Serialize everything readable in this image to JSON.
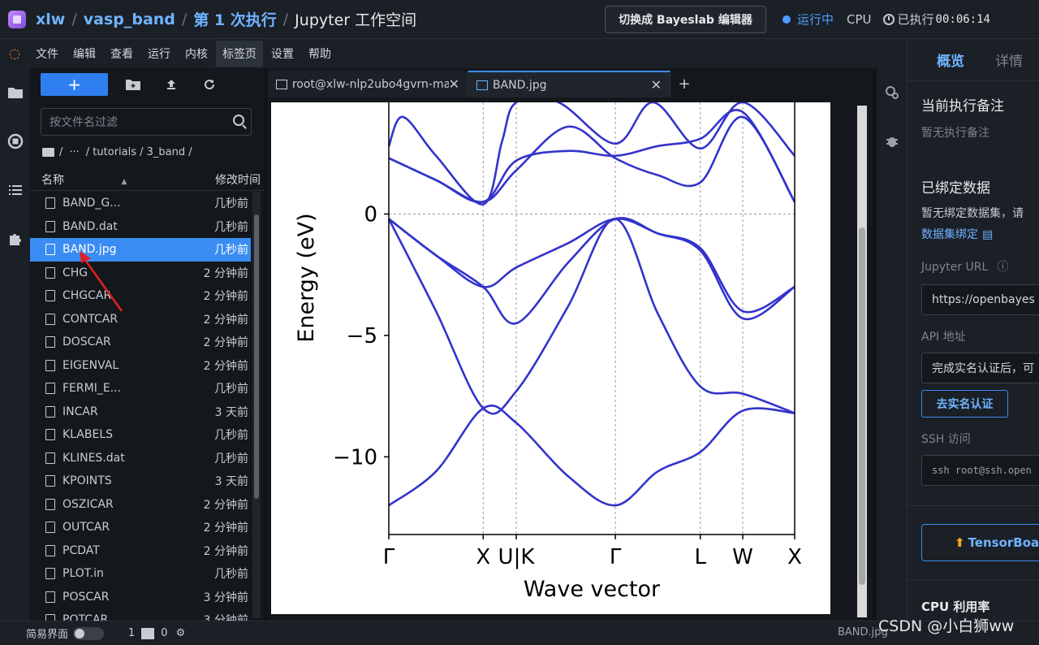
{
  "header": {
    "crumbs": [
      "xlw",
      "vasp_band",
      "第 1 次执行",
      "Jupyter 工作空间"
    ],
    "switch_button": "切换成 Bayeslab 编辑器",
    "status": "运行中",
    "cpu_label": "CPU",
    "elapsed_label": "已执行",
    "elapsed_time": "00:06:14"
  },
  "menu": [
    "文件",
    "编辑",
    "查看",
    "运行",
    "内核",
    "标签页",
    "设置",
    "帮助"
  ],
  "filebrowser": {
    "new_button": "+",
    "filter_placeholder": "按文件名过滤",
    "path": [
      "/",
      "···",
      "/ tutorials / 3_band /"
    ],
    "col_name": "名称",
    "col_mtime": "修改时间",
    "files": [
      {
        "name": "BAND_G...",
        "time": "几秒前"
      },
      {
        "name": "BAND.dat",
        "time": "几秒前"
      },
      {
        "name": "BAND.jpg",
        "time": "几秒前"
      },
      {
        "name": "CHG",
        "time": "2 分钟前"
      },
      {
        "name": "CHGCAR",
        "time": "2 分钟前"
      },
      {
        "name": "CONTCAR",
        "time": "2 分钟前"
      },
      {
        "name": "DOSCAR",
        "time": "2 分钟前"
      },
      {
        "name": "EIGENVAL",
        "time": "2 分钟前"
      },
      {
        "name": "FERMI_E...",
        "time": "几秒前"
      },
      {
        "name": "INCAR",
        "time": "3 天前"
      },
      {
        "name": "KLABELS",
        "time": "几秒前"
      },
      {
        "name": "KLINES.dat",
        "time": "几秒前"
      },
      {
        "name": "KPOINTS",
        "time": "3 天前"
      },
      {
        "name": "OSZICAR",
        "time": "2 分钟前"
      },
      {
        "name": "OUTCAR",
        "time": "2 分钟前"
      },
      {
        "name": "PCDAT",
        "time": "2 分钟前"
      },
      {
        "name": "PLOT.in",
        "time": "几秒前"
      },
      {
        "name": "POSCAR",
        "time": "3 分钟前"
      },
      {
        "name": "POTCAR",
        "time": "3 分钟前"
      }
    ]
  },
  "tabs": [
    {
      "label": "root@xlw-nlp2ubo4gvrn-ma"
    },
    {
      "label": "BAND.jpg"
    }
  ],
  "chart_data": {
    "type": "line",
    "xlabel": "Wave vector",
    "ylabel": "Energy (eV)",
    "ylim": [
      -13.2,
      4.6
    ],
    "yticks": [
      0,
      -5,
      -10
    ],
    "ytick_labels": [
      "0",
      "−5",
      "−10"
    ],
    "xticks": [
      0,
      1,
      1.35,
      2.4,
      3.3,
      3.75,
      4.3
    ],
    "xtick_labels": [
      "Γ",
      "X",
      "U|K",
      "Γ",
      "L",
      "W",
      "X"
    ],
    "series_color": "#3333cc",
    "bands": [
      {
        "x": [
          0,
          0.5,
          1,
          1.35,
          1.9,
          2.4,
          2.85,
          3.3,
          3.75,
          4.3
        ],
        "y": [
          -12.0,
          -10.6,
          -8.0,
          -8.6,
          -10.8,
          -12.0,
          -10.6,
          -9.8,
          -8.1,
          -8.2
        ]
      },
      {
        "x": [
          0,
          0.5,
          1,
          1.35,
          1.9,
          2.4,
          2.85,
          3.3,
          3.75,
          4.3
        ],
        "y": [
          -0.2,
          -4.0,
          -8.0,
          -7.3,
          -3.8,
          -0.2,
          -4.1,
          -7.1,
          -7.4,
          -8.2
        ]
      },
      {
        "x": [
          0,
          0.5,
          1,
          1.35,
          1.9,
          2.4,
          2.85,
          3.3,
          3.75,
          4.3
        ],
        "y": [
          -0.2,
          -1.7,
          -3.0,
          -4.5,
          -2.0,
          -0.2,
          -0.8,
          -1.4,
          -4.0,
          -3.0
        ]
      },
      {
        "x": [
          0,
          0.5,
          1,
          1.35,
          1.9,
          2.4,
          2.85,
          3.3,
          3.75,
          4.3
        ],
        "y": [
          -0.2,
          -1.7,
          -3.0,
          -2.2,
          -1.2,
          -0.2,
          -0.8,
          -1.5,
          -4.3,
          -3.0
        ]
      },
      {
        "x": [
          0,
          0.5,
          1,
          1.35,
          1.9,
          2.4,
          2.85,
          3.3,
          3.75,
          4.3
        ],
        "y": [
          2.3,
          1.4,
          0.5,
          1.8,
          3.6,
          2.3,
          1.6,
          1.3,
          4.0,
          0.5
        ]
      },
      {
        "x": [
          0,
          0.5,
          1,
          1.35,
          1.9,
          2.4,
          2.85,
          3.3,
          3.75,
          4.3
        ],
        "y": [
          2.3,
          1.4,
          0.5,
          2.2,
          2.6,
          2.4,
          2.8,
          3.1,
          4.2,
          0.5
        ]
      },
      {
        "x": [
          0,
          0.15,
          0.5,
          1,
          1.2,
          1.35,
          1.8,
          2.4,
          2.8,
          3.3,
          3.75,
          4.3
        ],
        "y": [
          2.8,
          4.0,
          2.4,
          0.4,
          3.0,
          4.6,
          4.6,
          2.9,
          4.6,
          2.7,
          4.6,
          2.4
        ]
      }
    ]
  },
  "right_panel": {
    "tab_overview": "概览",
    "tab_detail": "详情",
    "note_title": "当前执行备注",
    "note_empty": "暂无执行备注",
    "data_title": "已绑定数据",
    "data_empty": "暂无绑定数据集，请",
    "data_link": "数据集绑定",
    "jupyter_label": "Jupyter URL",
    "jupyter_url": "https://openbayes",
    "api_label": "API 地址",
    "api_value": "完成实名认证后，可",
    "verify_button": "去实名认证",
    "ssh_label": "SSH 访问",
    "ssh_value": "ssh root@ssh.open",
    "tensorboard_button": "TensorBoa",
    "cpu_usage": "CPU 利用率"
  },
  "statusbar": {
    "mode_label": "简易界面",
    "count1": "1",
    "count2": "0",
    "file": "BAND.jpg"
  },
  "watermark": "CSDN @小白狮ww"
}
